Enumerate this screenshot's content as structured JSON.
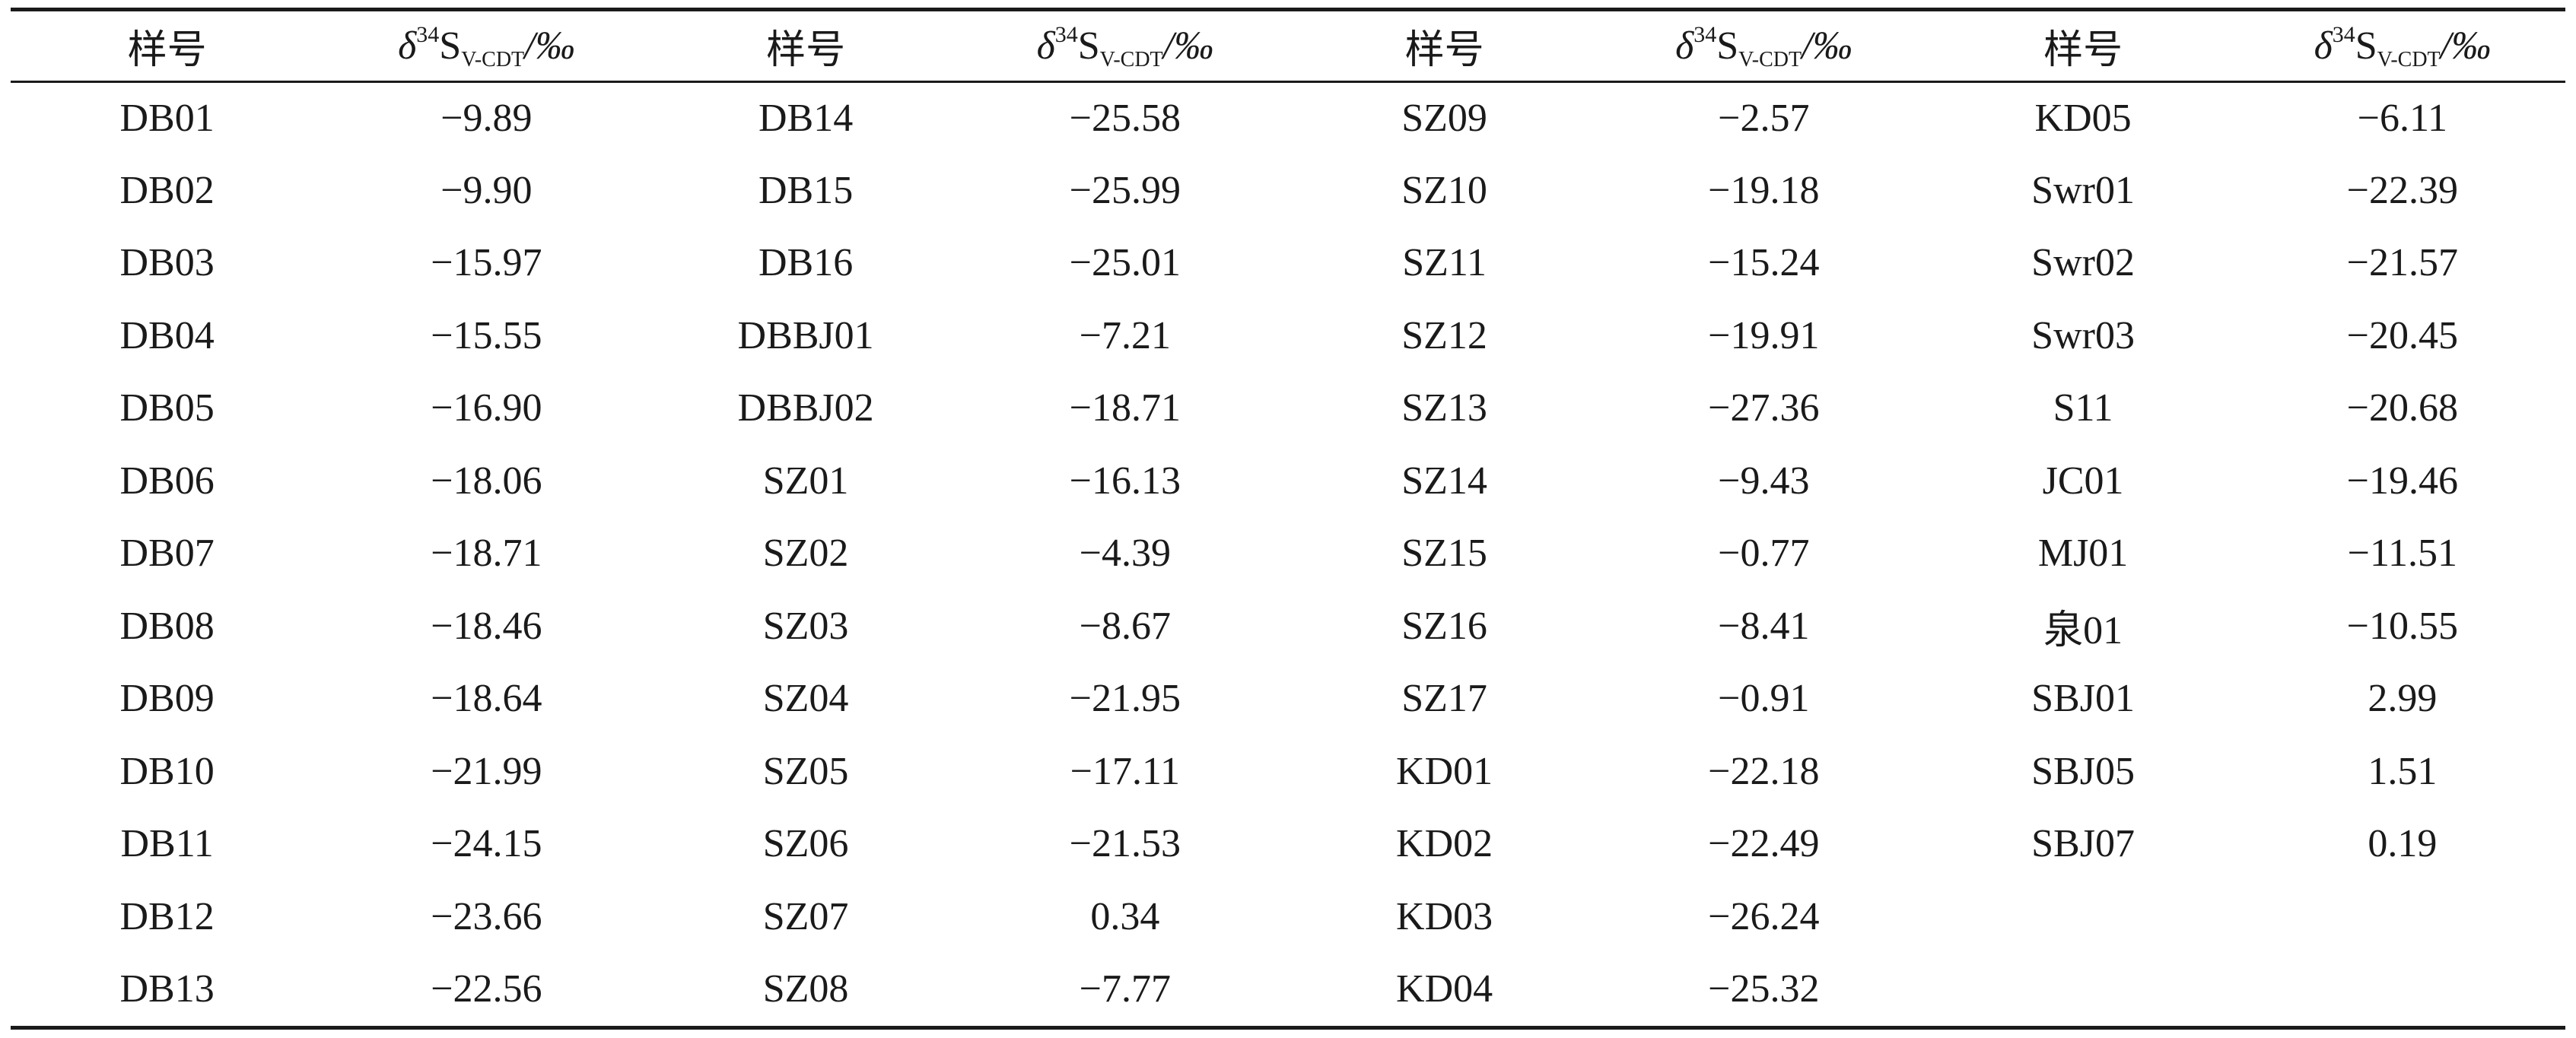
{
  "table": {
    "headers": [
      {
        "type": "id",
        "label": "样号"
      },
      {
        "type": "val",
        "delta": "δ",
        "sup": "34",
        "base": "S",
        "sub": "V-CDT",
        "unit": "/‰"
      },
      {
        "type": "id",
        "label": "样号"
      },
      {
        "type": "val",
        "delta": "δ",
        "sup": "34",
        "base": "S",
        "sub": "V-CDT",
        "unit": "/‰"
      },
      {
        "type": "id",
        "label": "样号"
      },
      {
        "type": "val",
        "delta": "δ",
        "sup": "34",
        "base": "S",
        "sub": "V-CDT",
        "unit": "/‰"
      },
      {
        "type": "id",
        "label": "样号"
      },
      {
        "type": "val",
        "delta": "δ",
        "sup": "34",
        "base": "S",
        "sub": "V-CDT",
        "unit": "/‰"
      }
    ],
    "rows": [
      [
        "DB01",
        "−9.89",
        "DB14",
        "−25.58",
        "SZ09",
        "−2.57",
        "KD05",
        "−6.11"
      ],
      [
        "DB02",
        "−9.90",
        "DB15",
        "−25.99",
        "SZ10",
        "−19.18",
        "Swr01",
        "−22.39"
      ],
      [
        "DB03",
        "−15.97",
        "DB16",
        "−25.01",
        "SZ11",
        "−15.24",
        "Swr02",
        "−21.57"
      ],
      [
        "DB04",
        "−15.55",
        "DBBJ01",
        "−7.21",
        "SZ12",
        "−19.91",
        "Swr03",
        "−20.45"
      ],
      [
        "DB05",
        "−16.90",
        "DBBJ02",
        "−18.71",
        "SZ13",
        "−27.36",
        "S11",
        "−20.68"
      ],
      [
        "DB06",
        "−18.06",
        "SZ01",
        "−16.13",
        "SZ14",
        "−9.43",
        "JC01",
        "−19.46"
      ],
      [
        "DB07",
        "−18.71",
        "SZ02",
        "−4.39",
        "SZ15",
        "−0.77",
        "MJ01",
        "−11.51"
      ],
      [
        "DB08",
        "−18.46",
        "SZ03",
        "−8.67",
        "SZ16",
        "−8.41",
        "泉01",
        "−10.55"
      ],
      [
        "DB09",
        "−18.64",
        "SZ04",
        "−21.95",
        "SZ17",
        "−0.91",
        "SBJ01",
        "2.99"
      ],
      [
        "DB10",
        "−21.99",
        "SZ05",
        "−17.11",
        "KD01",
        "−22.18",
        "SBJ05",
        "1.51"
      ],
      [
        "DB11",
        "−24.15",
        "SZ06",
        "−21.53",
        "KD02",
        "−22.49",
        "SBJ07",
        "0.19"
      ],
      [
        "DB12",
        "−23.66",
        "SZ07",
        "0.34",
        "KD03",
        "−26.24",
        "",
        ""
      ],
      [
        "DB13",
        "−22.56",
        "SZ08",
        "−7.77",
        "KD04",
        "−25.32",
        "",
        ""
      ]
    ]
  }
}
